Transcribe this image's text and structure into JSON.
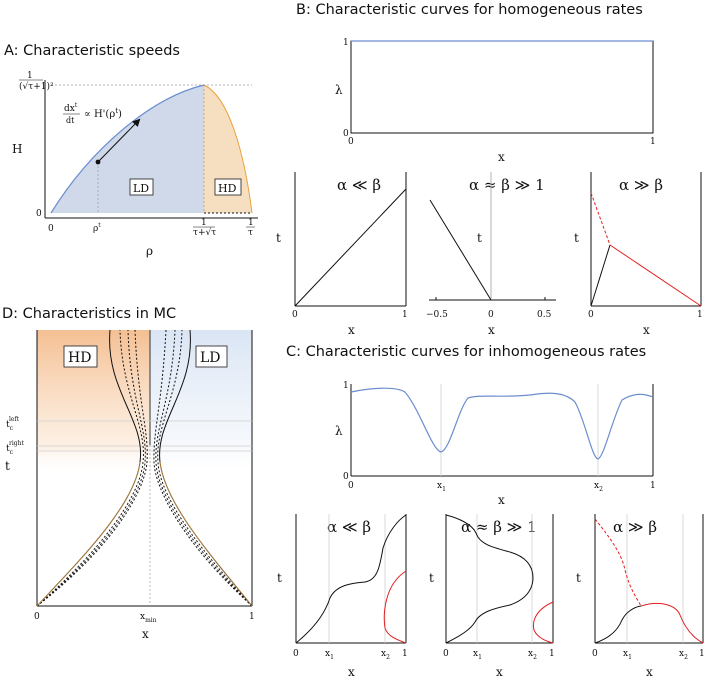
{
  "colors": {
    "ld_fill": "#cfd9ea",
    "hd_fill": "#f6dfc0",
    "curve_blue": "#6c8ecf",
    "curve_orange": "#e8a23c",
    "red": "#e32020",
    "black": "#111111"
  },
  "panelA": {
    "title": "A: Characteristic speeds",
    "ylabel": "H",
    "xlabel": "ρ",
    "ytick_top": "1/(√τ+1)²",
    "ytick_top_num": "1",
    "ytick_top_den": "(√τ+1)²",
    "ytick_zero": "0",
    "xtick_0": "0",
    "xtick_rho": "ρ",
    "xtick_rho_sup": "t",
    "xtick_mid_num": "1",
    "xtick_mid_den": "τ+√τ",
    "xtick_end_num": "1",
    "xtick_end_den": "τ",
    "annot_lhs_num": "dx",
    "annot_lhs_sup": "t",
    "annot_lhs_den": "dt",
    "annot_rhs": "∝ H'(ρ",
    "annot_rhs_sup": "t",
    "annot_rhs_close": ")",
    "label_ld": "LD",
    "label_hd": "HD"
  },
  "panelB": {
    "title": "B: Characteristic curves for homogeneous rates",
    "ylabel": "λ",
    "xlabel": "x",
    "ytick_0": "0",
    "ytick_1": "1",
    "xtick_0": "0",
    "xtick_1": "1",
    "sub1": {
      "title": "α ≪ β",
      "ylabel": "t",
      "xlabel": "x",
      "xtick_0": "0",
      "xtick_1": "1"
    },
    "sub2": {
      "title": "α ≈ β ≫ 1",
      "ylabel": "t",
      "xlabel": "x",
      "xtick_a": "−0.5",
      "xtick_b": "0",
      "xtick_c": "0.5"
    },
    "sub3": {
      "title": "α ≫ β",
      "ylabel": "t",
      "xlabel": "x",
      "xtick_0": "0",
      "xtick_1": "1"
    }
  },
  "panelC": {
    "title": "C: Characteristic curves for inhomogeneous rates",
    "ylabel": "λ",
    "xlabel": "x",
    "ytick_0": "0",
    "ytick_1": "1",
    "xtick_0": "0",
    "xtick_1": "1",
    "xtick_x1": "x",
    "xtick_x1_sub": "1",
    "xtick_x2": "x",
    "xtick_x2_sub": "2",
    "sub1": {
      "title": "α ≪ β",
      "ylabel": "t",
      "xlabel": "x",
      "xt0": "0",
      "xt1": "x",
      "xt1s": "1",
      "xt2": "x",
      "xt2s": "2",
      "xt3": "1"
    },
    "sub2": {
      "title": "α ≈ β ≫ 1",
      "ylabel": "t",
      "xlabel": "x",
      "xt0": "0",
      "xt1": "x",
      "xt1s": "1",
      "xt2": "x",
      "xt2s": "2",
      "xt3": "1"
    },
    "sub3": {
      "title": "α ≫ β",
      "ylabel": "t",
      "xlabel": "x",
      "xt0": "0",
      "xt1": "x",
      "xt1s": "1",
      "xt2": "x",
      "xt2s": "2",
      "xt3": "1"
    }
  },
  "panelD": {
    "title": "D: Characteristics in MC",
    "ylabel": "t",
    "xlabel": "x",
    "ytick_left": "t",
    "ytick_left_sub": "c",
    "ytick_left_sup": "left",
    "ytick_right": "t",
    "ytick_right_sub": "c",
    "ytick_right_sup": "right",
    "xtick_0": "0",
    "xtick_min": "x",
    "xtick_min_sub": "min",
    "xtick_1": "1",
    "label_hd": "HD",
    "label_ld": "LD"
  }
}
